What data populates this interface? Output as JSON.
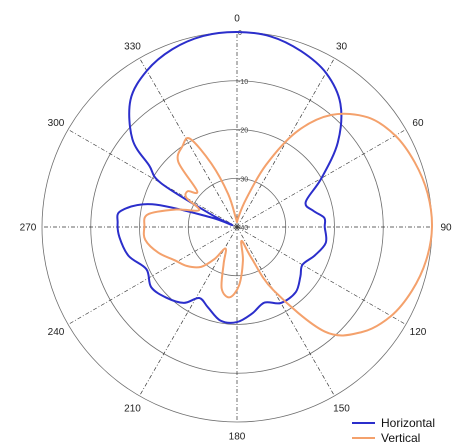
{
  "chart_data": {
    "type": "polar-line",
    "title": "",
    "angle_unit": "degrees",
    "angle_ticks": [
      0,
      30,
      60,
      90,
      120,
      150,
      180,
      210,
      240,
      270,
      300,
      330
    ],
    "radial_range": [
      -40,
      0
    ],
    "radial_ticks": [
      0,
      -10,
      -20,
      -30,
      -40
    ],
    "radial_tick_labels": [
      "0",
      "-10",
      "-20",
      "-30",
      "-40"
    ],
    "grid": true,
    "legend": {
      "placement": "bottom-right"
    },
    "series": [
      {
        "name": "Horizontal",
        "color": "#2b2ecb",
        "points": [
          {
            "angle": 0,
            "value": 0
          },
          {
            "angle": 10,
            "value": -0.3
          },
          {
            "angle": 20,
            "value": -1.6
          },
          {
            "angle": 30,
            "value": -3.5
          },
          {
            "angle": 40,
            "value": -7
          },
          {
            "angle": 50,
            "value": -13
          },
          {
            "angle": 60,
            "value": -20
          },
          {
            "angle": 70,
            "value": -25
          },
          {
            "angle": 78,
            "value": -24
          },
          {
            "angle": 84,
            "value": -22
          },
          {
            "angle": 90,
            "value": -22
          },
          {
            "angle": 100,
            "value": -21.5
          },
          {
            "angle": 110,
            "value": -23
          },
          {
            "angle": 120,
            "value": -24.5
          },
          {
            "angle": 128,
            "value": -23.5
          },
          {
            "angle": 138,
            "value": -22
          },
          {
            "angle": 150,
            "value": -22
          },
          {
            "angle": 160,
            "value": -23.5
          },
          {
            "angle": 170,
            "value": -22
          },
          {
            "angle": 180,
            "value": -20.5
          },
          {
            "angle": 190,
            "value": -20.5
          },
          {
            "angle": 200,
            "value": -22.5
          },
          {
            "angle": 208,
            "value": -23.5
          },
          {
            "angle": 215,
            "value": -21
          },
          {
            "angle": 225,
            "value": -19.5
          },
          {
            "angle": 235,
            "value": -18.5
          },
          {
            "angle": 245,
            "value": -19.5
          },
          {
            "angle": 255,
            "value": -17
          },
          {
            "angle": 265,
            "value": -15.8
          },
          {
            "angle": 272,
            "value": -15.5
          },
          {
            "angle": 278,
            "value": -16
          },
          {
            "angle": 285,
            "value": -22
          },
          {
            "angle": 290,
            "value": -34
          },
          {
            "angle": 292,
            "value": -39
          },
          {
            "angle": 296,
            "value": -34
          },
          {
            "angle": 300,
            "value": -22
          },
          {
            "angle": 305,
            "value": -18
          },
          {
            "angle": 310,
            "value": -12
          },
          {
            "angle": 320,
            "value": -6
          },
          {
            "angle": 330,
            "value": -3
          },
          {
            "angle": 340,
            "value": -1.2
          },
          {
            "angle": 350,
            "value": -0.2
          }
        ]
      },
      {
        "name": "Vertical",
        "color": "#f4a16c",
        "points": [
          {
            "angle": 0,
            "value": -39
          },
          {
            "angle": 8,
            "value": -38
          },
          {
            "angle": 18,
            "value": -34
          },
          {
            "angle": 25,
            "value": -26
          },
          {
            "angle": 32,
            "value": -17
          },
          {
            "angle": 40,
            "value": -10
          },
          {
            "angle": 50,
            "value": -5
          },
          {
            "angle": 60,
            "value": -2.5
          },
          {
            "angle": 70,
            "value": -1.2
          },
          {
            "angle": 80,
            "value": -0.3
          },
          {
            "angle": 90,
            "value": 0
          },
          {
            "angle": 100,
            "value": -0.6
          },
          {
            "angle": 110,
            "value": -1.8
          },
          {
            "angle": 120,
            "value": -3.5
          },
          {
            "angle": 130,
            "value": -6.5
          },
          {
            "angle": 140,
            "value": -12
          },
          {
            "angle": 150,
            "value": -25
          },
          {
            "angle": 155,
            "value": -33
          },
          {
            "angle": 162,
            "value": -37
          },
          {
            "angle": 170,
            "value": -33
          },
          {
            "angle": 178,
            "value": -28
          },
          {
            "angle": 186,
            "value": -25.5
          },
          {
            "angle": 194,
            "value": -27
          },
          {
            "angle": 200,
            "value": -32
          },
          {
            "angle": 208,
            "value": -35
          },
          {
            "angle": 215,
            "value": -32
          },
          {
            "angle": 222,
            "value": -29
          },
          {
            "angle": 232,
            "value": -27
          },
          {
            "angle": 242,
            "value": -25.5
          },
          {
            "angle": 252,
            "value": -23
          },
          {
            "angle": 262,
            "value": -21
          },
          {
            "angle": 270,
            "value": -21
          },
          {
            "angle": 278,
            "value": -21.5
          },
          {
            "angle": 286,
            "value": -27
          },
          {
            "angle": 294,
            "value": -31.5
          },
          {
            "angle": 300,
            "value": -28
          },
          {
            "angle": 306,
            "value": -27.5
          },
          {
            "angle": 312,
            "value": -29
          },
          {
            "angle": 318,
            "value": -22
          },
          {
            "angle": 326,
            "value": -20
          },
          {
            "angle": 332,
            "value": -19.5
          },
          {
            "angle": 338,
            "value": -26
          },
          {
            "angle": 345,
            "value": -33
          },
          {
            "angle": 352,
            "value": -38
          }
        ]
      }
    ]
  }
}
